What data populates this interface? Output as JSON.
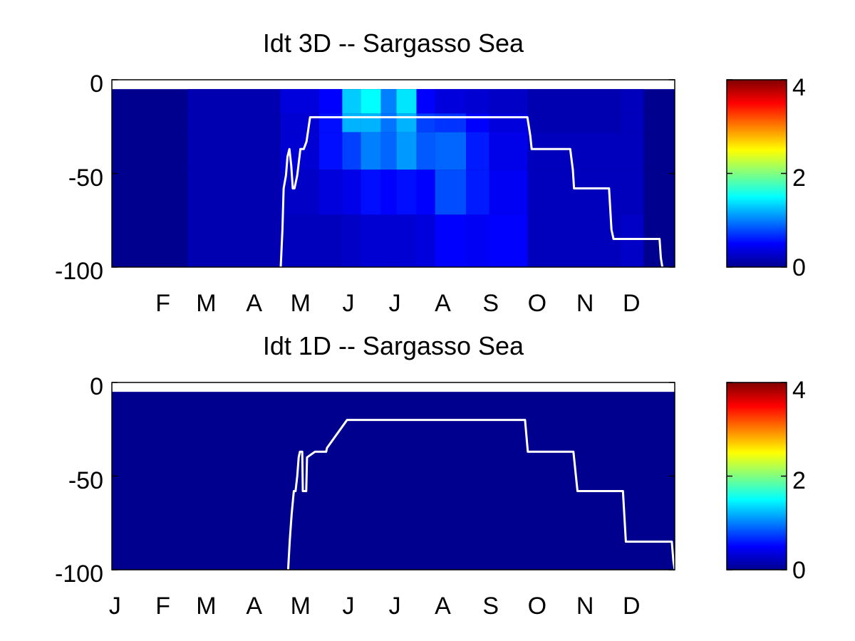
{
  "colormap": [
    "#00008f",
    "#0000ff",
    "#0080ff",
    "#00ffff",
    "#80ff80",
    "#ffff00",
    "#ff8000",
    "#ff0000",
    "#800000"
  ],
  "line_color": "#ffffff",
  "chart_data": [
    {
      "type": "heatmap",
      "title": "Idt 3D   -- Sargasso Sea",
      "x_tick_labels": [
        "F",
        "M",
        "A",
        "M",
        "J",
        "J",
        "A",
        "S",
        "O",
        "N",
        "D"
      ],
      "x_tick_months": [
        2,
        3,
        4,
        5,
        6,
        7,
        8,
        9,
        10,
        11,
        12
      ],
      "y_tick_labels": [
        "0",
        "-50",
        "-100"
      ],
      "y_ticks": [
        0,
        -50,
        -100
      ],
      "ylim": [
        -100,
        0
      ],
      "xlim_day": [
        1,
        365
      ],
      "data_top": -5,
      "colorbar": {
        "min": 0,
        "max": 4,
        "tick_labels": [
          "0",
          "2",
          "4"
        ],
        "ticks": [
          0,
          2,
          4
        ]
      },
      "depth_layers": [
        [
          -5,
          -18
        ],
        [
          -18,
          -28
        ],
        [
          -28,
          -48
        ],
        [
          -48,
          -72
        ],
        [
          -72,
          -100
        ]
      ],
      "heat_cells": [
        {
          "d0": 50,
          "d1": 110,
          "layer": 0,
          "v": 0.15
        },
        {
          "d0": 50,
          "d1": 110,
          "layer": 1,
          "v": 0.15
        },
        {
          "d0": 50,
          "d1": 110,
          "layer": 2,
          "v": 0.15
        },
        {
          "d0": 50,
          "d1": 110,
          "layer": 3,
          "v": 0.15
        },
        {
          "d0": 50,
          "d1": 110,
          "layer": 4,
          "v": 0.15
        },
        {
          "d0": 110,
          "d1": 135,
          "layer": 0,
          "v": 0.35
        },
        {
          "d0": 110,
          "d1": 135,
          "layer": 1,
          "v": 0.3
        },
        {
          "d0": 110,
          "d1": 135,
          "layer": 2,
          "v": 0.3
        },
        {
          "d0": 110,
          "d1": 135,
          "layer": 3,
          "v": 0.25
        },
        {
          "d0": 110,
          "d1": 135,
          "layer": 4,
          "v": 0.2
        },
        {
          "d0": 135,
          "d1": 150,
          "layer": 0,
          "v": 0.5
        },
        {
          "d0": 135,
          "d1": 150,
          "layer": 1,
          "v": 0.55
        },
        {
          "d0": 135,
          "d1": 150,
          "layer": 2,
          "v": 0.55
        },
        {
          "d0": 135,
          "d1": 150,
          "layer": 3,
          "v": 0.35
        },
        {
          "d0": 135,
          "d1": 150,
          "layer": 4,
          "v": 0.2
        },
        {
          "d0": 150,
          "d1": 162,
          "layer": 0,
          "v": 1.3
        },
        {
          "d0": 150,
          "d1": 162,
          "layer": 1,
          "v": 1.2
        },
        {
          "d0": 150,
          "d1": 162,
          "layer": 2,
          "v": 0.75
        },
        {
          "d0": 150,
          "d1": 162,
          "layer": 3,
          "v": 0.4
        },
        {
          "d0": 150,
          "d1": 162,
          "layer": 4,
          "v": 0.25
        },
        {
          "d0": 162,
          "d1": 175,
          "layer": 0,
          "v": 1.5
        },
        {
          "d0": 162,
          "d1": 175,
          "layer": 1,
          "v": 1.2
        },
        {
          "d0": 162,
          "d1": 175,
          "layer": 2,
          "v": 1.0
        },
        {
          "d0": 162,
          "d1": 175,
          "layer": 3,
          "v": 0.55
        },
        {
          "d0": 162,
          "d1": 175,
          "layer": 4,
          "v": 0.3
        },
        {
          "d0": 175,
          "d1": 185,
          "layer": 0,
          "v": 1.0
        },
        {
          "d0": 175,
          "d1": 185,
          "layer": 1,
          "v": 0.95
        },
        {
          "d0": 175,
          "d1": 185,
          "layer": 2,
          "v": 0.9
        },
        {
          "d0": 175,
          "d1": 185,
          "layer": 3,
          "v": 0.5
        },
        {
          "d0": 175,
          "d1": 185,
          "layer": 4,
          "v": 0.3
        },
        {
          "d0": 185,
          "d1": 198,
          "layer": 0,
          "v": 1.4
        },
        {
          "d0": 185,
          "d1": 198,
          "layer": 1,
          "v": 1.2
        },
        {
          "d0": 185,
          "d1": 198,
          "layer": 2,
          "v": 1.1
        },
        {
          "d0": 185,
          "d1": 198,
          "layer": 3,
          "v": 0.55
        },
        {
          "d0": 185,
          "d1": 198,
          "layer": 4,
          "v": 0.3
        },
        {
          "d0": 198,
          "d1": 210,
          "layer": 0,
          "v": 0.5
        },
        {
          "d0": 198,
          "d1": 210,
          "layer": 1,
          "v": 0.75
        },
        {
          "d0": 198,
          "d1": 210,
          "layer": 2,
          "v": 0.85
        },
        {
          "d0": 198,
          "d1": 210,
          "layer": 3,
          "v": 0.5
        },
        {
          "d0": 198,
          "d1": 210,
          "layer": 4,
          "v": 0.35
        },
        {
          "d0": 210,
          "d1": 230,
          "layer": 0,
          "v": 0.35
        },
        {
          "d0": 210,
          "d1": 230,
          "layer": 1,
          "v": 0.7
        },
        {
          "d0": 210,
          "d1": 230,
          "layer": 2,
          "v": 0.9
        },
        {
          "d0": 210,
          "d1": 230,
          "layer": 3,
          "v": 0.8
        },
        {
          "d0": 210,
          "d1": 230,
          "layer": 4,
          "v": 0.5
        },
        {
          "d0": 230,
          "d1": 245,
          "layer": 0,
          "v": 0.3
        },
        {
          "d0": 230,
          "d1": 245,
          "layer": 1,
          "v": 0.5
        },
        {
          "d0": 230,
          "d1": 245,
          "layer": 2,
          "v": 0.6
        },
        {
          "d0": 230,
          "d1": 245,
          "layer": 3,
          "v": 0.6
        },
        {
          "d0": 230,
          "d1": 245,
          "layer": 4,
          "v": 0.45
        },
        {
          "d0": 245,
          "d1": 270,
          "layer": 0,
          "v": 0.25
        },
        {
          "d0": 245,
          "d1": 270,
          "layer": 1,
          "v": 0.35
        },
        {
          "d0": 245,
          "d1": 270,
          "layer": 2,
          "v": 0.4
        },
        {
          "d0": 245,
          "d1": 270,
          "layer": 3,
          "v": 0.45
        },
        {
          "d0": 245,
          "d1": 270,
          "layer": 4,
          "v": 0.5
        },
        {
          "d0": 270,
          "d1": 330,
          "layer": 0,
          "v": 0.15
        },
        {
          "d0": 270,
          "d1": 330,
          "layer": 1,
          "v": 0.15
        },
        {
          "d0": 270,
          "d1": 330,
          "layer": 2,
          "v": 0.2
        },
        {
          "d0": 270,
          "d1": 330,
          "layer": 3,
          "v": 0.2
        },
        {
          "d0": 270,
          "d1": 330,
          "layer": 4,
          "v": 0.2
        },
        {
          "d0": 330,
          "d1": 345,
          "layer": 0,
          "v": 0.2
        },
        {
          "d0": 330,
          "d1": 345,
          "layer": 1,
          "v": 0.2
        },
        {
          "d0": 330,
          "d1": 345,
          "layer": 2,
          "v": 0.2
        },
        {
          "d0": 330,
          "d1": 345,
          "layer": 3,
          "v": 0.2
        },
        {
          "d0": 330,
          "d1": 345,
          "layer": 4,
          "v": 0.25
        }
      ],
      "mld_line": {
        "x_day": [
          110.2,
          111.3,
          112.1,
          113.6,
          114.6,
          115.8,
          117,
          118,
          119.1,
          120.9,
          122.9,
          125.1,
          126.9,
          129.2,
          129.9,
          142.4,
          269.7,
          271.6,
          272.5,
          297.4,
          299.1,
          299.9,
          322.5,
          324.1,
          325.4,
          355.2,
          356,
          357
        ],
        "y": [
          -100,
          -80,
          -58,
          -51,
          -41,
          -37,
          -46,
          -58,
          -58,
          -51,
          -37,
          -37,
          -33,
          -20,
          -20,
          -20,
          -20,
          -30,
          -37,
          -37,
          -48,
          -58,
          -58,
          -80,
          -85,
          -85,
          -95,
          -100
        ]
      }
    },
    {
      "type": "heatmap",
      "title": "Idt 1D   -- Sargasso Sea",
      "x_tick_labels": [
        "J",
        "F",
        "M",
        "A",
        "M",
        "J",
        "J",
        "A",
        "S",
        "O",
        "N",
        "D"
      ],
      "x_tick_months": [
        1,
        2,
        3,
        4,
        5,
        6,
        7,
        8,
        9,
        10,
        11,
        12
      ],
      "y_tick_labels": [
        "0",
        "-50",
        "-100"
      ],
      "y_ticks": [
        0,
        -50,
        -100
      ],
      "ylim": [
        -100,
        0
      ],
      "xlim_day": [
        1,
        365
      ],
      "data_top": -5,
      "colorbar": {
        "min": 0,
        "max": 4,
        "tick_labels": [
          "0",
          "2",
          "4"
        ],
        "ticks": [
          0,
          2,
          4
        ]
      },
      "depth_layers": [],
      "heat_cells": [],
      "mld_line": {
        "x_day": [
          115,
          116,
          116.4,
          117.3,
          118.7,
          119.8,
          120.9,
          121.8,
          122.6,
          124.1,
          124.5,
          125.6,
          126.7,
          127.2,
          132.3,
          134.4,
          135,
          139.6,
          140.1,
          153.1,
          155.2,
          268.2,
          270,
          275.2,
          299.5,
          302.1,
          331.5,
          333.4,
          340.2,
          363.1,
          364.1,
          365
        ],
        "y": [
          -100,
          -85,
          -80,
          -70,
          -58,
          -58,
          -50,
          -40,
          -37,
          -37,
          -58,
          -58,
          -58,
          -40,
          -37,
          -37,
          -37,
          -37,
          -35,
          -20,
          -20,
          -20,
          -37,
          -37,
          -37,
          -58,
          -58,
          -85,
          -85,
          -85,
          -95,
          -100
        ]
      }
    }
  ]
}
